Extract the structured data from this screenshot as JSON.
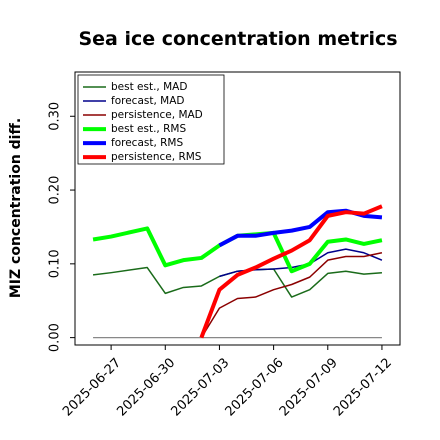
{
  "chart_data": {
    "type": "line",
    "title": "Sea ice concentration metrics",
    "y_label": "MIZ concentration diff.",
    "x": [
      "2025-06-26",
      "2025-06-27",
      "2025-06-29",
      "2025-06-30",
      "2025-07-01",
      "2025-07-02",
      "2025-07-03",
      "2025-07-04",
      "2025-07-05",
      "2025-07-06",
      "2025-07-07",
      "2025-07-08",
      "2025-07-09",
      "2025-07-10",
      "2025-07-11",
      "2025-07-12"
    ],
    "xlim": [
      "2025-06-25",
      "2025-07-13"
    ],
    "xticks": [
      {
        "value": "2025-06-27",
        "label": "2025-06-27"
      },
      {
        "value": "2025-06-30",
        "label": "2025-06-30"
      },
      {
        "value": "2025-07-03",
        "label": "2025-07-03",
        "color": "#2ca02c"
      },
      {
        "value": "2025-07-06",
        "label": "2025-07-06"
      },
      {
        "value": "2025-07-09",
        "label": "2025-07-09"
      },
      {
        "value": "2025-07-12",
        "label": "2025-07-12"
      }
    ],
    "ylim": [
      -0.01,
      0.36
    ],
    "yticks": [
      {
        "value": 0,
        "label": "0.00"
      },
      {
        "value": 0.1,
        "label": "0.10"
      },
      {
        "value": 0.2,
        "label": "0.20"
      },
      {
        "value": 0.3,
        "label": "0.30"
      }
    ],
    "reference_line": {
      "value": 0,
      "color": "#888888"
    },
    "legend": "upper left",
    "series": [
      {
        "name": "best est., MAD",
        "color": "#1a6b1a",
        "width": 1.5,
        "values": [
          0.085,
          0.088,
          0.095,
          0.06,
          0.068,
          0.07,
          0.083,
          0.09,
          0.092,
          0.093,
          0.055,
          0.065,
          0.087,
          0.09,
          0.086,
          0.088
        ]
      },
      {
        "name": "forecast,  MAD",
        "color": "#00008b",
        "width": 1.5,
        "values": [
          null,
          null,
          null,
          null,
          null,
          null,
          0.083,
          0.09,
          0.092,
          0.093,
          0.095,
          0.1,
          0.115,
          0.12,
          0.115,
          0.105
        ]
      },
      {
        "name": "persistence, MAD",
        "color": "#8b0000",
        "width": 1.5,
        "values": [
          null,
          null,
          null,
          null,
          null,
          0.0,
          0.04,
          0.053,
          0.055,
          0.065,
          0.072,
          0.082,
          0.105,
          0.11,
          0.11,
          0.115
        ]
      },
      {
        "name": "best est., RMS",
        "color": "#00ff00",
        "width": 4,
        "values": [
          0.133,
          0.137,
          0.148,
          0.098,
          0.105,
          0.108,
          0.125,
          0.138,
          0.14,
          0.142,
          0.09,
          0.1,
          0.13,
          0.133,
          0.127,
          0.132
        ]
      },
      {
        "name": "forecast,  RMS",
        "color": "#0000ff",
        "width": 4,
        "values": [
          null,
          null,
          null,
          null,
          null,
          null,
          0.125,
          0.138,
          0.138,
          0.142,
          0.145,
          0.15,
          0.17,
          0.172,
          0.165,
          0.163
        ]
      },
      {
        "name": "persistence, RMS",
        "color": "#ff0000",
        "width": 4,
        "values": [
          null,
          null,
          null,
          null,
          null,
          0.0,
          0.065,
          0.085,
          0.095,
          0.107,
          0.118,
          0.132,
          0.165,
          0.17,
          0.168,
          0.178
        ]
      }
    ]
  }
}
